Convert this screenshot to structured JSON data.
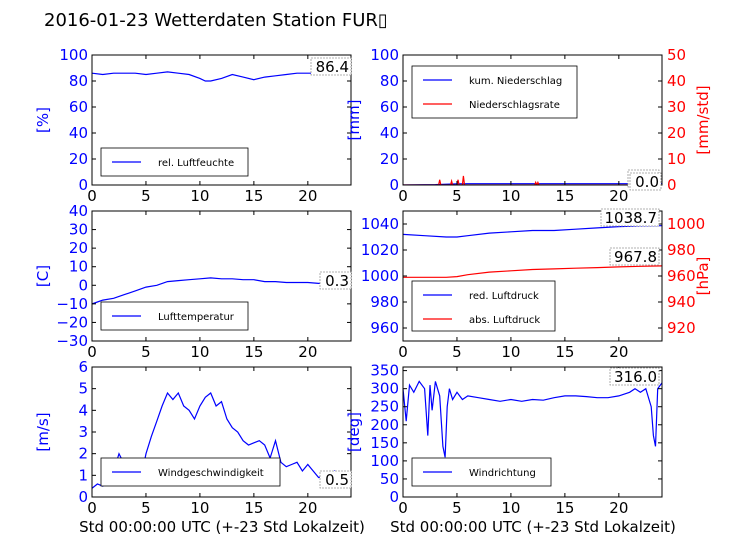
{
  "title": "2016-01-23 Wetterdaten Station FUR▯",
  "xlabel": "Std 00:00:00 UTC (+-23 Std Lokalzeit)",
  "colors": {
    "blue": "#0000ff",
    "red": "#ff0000"
  },
  "chart_data": [
    {
      "id": "humidity",
      "type": "line",
      "ylabel": "[%]",
      "ylim": [
        0,
        100
      ],
      "yticks": [
        "0",
        "20",
        "40",
        "60",
        "80",
        "100"
      ],
      "xlim": [
        0,
        24
      ],
      "xticks": [
        "0",
        "5",
        "10",
        "15",
        "20"
      ],
      "current_value": "86.4",
      "legend_position": "lower-left",
      "series": [
        {
          "name": "rel. Luftfeuchte",
          "color": "#0000ff",
          "x": [
            0,
            1,
            2,
            3,
            4,
            5,
            6,
            7,
            8,
            9,
            10,
            10.5,
            11,
            12,
            13,
            14,
            15,
            16,
            17,
            18,
            19,
            20,
            21,
            22,
            23,
            24
          ],
          "y": [
            86,
            85,
            86,
            86,
            86,
            85,
            86,
            87,
            86,
            85,
            82,
            80,
            80,
            82,
            85,
            83,
            81,
            83,
            84,
            85,
            86,
            86,
            86,
            86,
            86,
            86
          ]
        }
      ]
    },
    {
      "id": "precipitation",
      "type": "line",
      "ylabel": "[mm]",
      "ylim": [
        0,
        100
      ],
      "yticks": [
        "0",
        "20",
        "40",
        "60",
        "80",
        "100"
      ],
      "y2label": "[mm/std]",
      "y2lim": [
        0,
        50
      ],
      "y2ticks": [
        "0",
        "10",
        "20",
        "30",
        "40",
        "50"
      ],
      "xlim": [
        0,
        24
      ],
      "xticks": [
        "0",
        "5",
        "10",
        "15",
        "20"
      ],
      "current_value": "1.0",
      "current_value2": "0.0",
      "legend_position": "upper-left",
      "series": [
        {
          "name": "kum. Niederschlag",
          "color": "#0000ff",
          "axis": "left",
          "x": [
            0,
            3,
            4,
            5,
            6,
            12,
            13,
            24
          ],
          "y": [
            0,
            0.3,
            0.6,
            0.9,
            1.0,
            1.0,
            1.0,
            1.0
          ]
        },
        {
          "name": "Niederschlagsrate",
          "color": "#ff0000",
          "axis": "right",
          "x": [
            0,
            3.3,
            3.4,
            3.5,
            3.6,
            4.4,
            4.5,
            4.6,
            5.0,
            5.1,
            5.2,
            5.5,
            5.6,
            5.7,
            6,
            12.2,
            12.3,
            12.4,
            12.5,
            12.6,
            24
          ],
          "y": [
            0,
            0,
            2,
            0,
            0,
            0,
            1.5,
            0,
            0,
            2,
            0,
            0,
            3.5,
            0,
            0,
            0,
            1,
            0,
            1,
            0,
            0
          ]
        }
      ]
    },
    {
      "id": "temperature",
      "type": "line",
      "ylabel": "[C]",
      "ylim": [
        -30,
        40
      ],
      "yticks": [
        "−30",
        "−20",
        "−10",
        "0",
        "10",
        "20",
        "30",
        "40"
      ],
      "xlim": [
        0,
        24
      ],
      "xticks": [
        "0",
        "5",
        "10",
        "15",
        "20"
      ],
      "current_value": "0.3",
      "legend_position": "lower-left",
      "series": [
        {
          "name": "Lufttemperatur",
          "color": "#0000ff",
          "x": [
            0,
            0.5,
            1,
            2,
            3,
            4,
            5,
            6,
            7,
            8,
            9,
            10,
            11,
            12,
            13,
            14,
            15,
            16,
            17,
            18,
            19,
            20,
            21,
            22,
            23,
            24
          ],
          "y": [
            -10,
            -9,
            -8,
            -7,
            -5,
            -3,
            -1,
            0,
            2,
            2.5,
            3,
            3.5,
            4,
            3.5,
            3.5,
            3,
            3,
            2,
            2,
            1.5,
            1.5,
            1.5,
            1,
            1,
            0.5,
            0.3
          ]
        }
      ]
    },
    {
      "id": "pressure",
      "type": "line",
      "ylabel": "",
      "ylim": [
        950,
        1050
      ],
      "yticks": [
        "960",
        "980",
        "1000",
        "1020",
        "1040"
      ],
      "y2label": "[hPa]",
      "y2lim": [
        910,
        1010
      ],
      "y2ticks": [
        "920",
        "940",
        "960",
        "980",
        "1000"
      ],
      "xlim": [
        0,
        24
      ],
      "xticks": [
        "0",
        "5",
        "10",
        "15",
        "20"
      ],
      "current_value": "1038.7",
      "current_value2": "967.8",
      "legend_position": "lower-left",
      "series": [
        {
          "name": "red. Luftdruck",
          "color": "#0000ff",
          "axis": "left",
          "x": [
            0,
            2,
            4,
            5,
            6,
            8,
            10,
            12,
            14,
            16,
            18,
            20,
            22,
            24
          ],
          "y": [
            1032,
            1031,
            1030,
            1030,
            1031,
            1033,
            1034,
            1035,
            1035,
            1036,
            1037,
            1038,
            1038.5,
            1038.7
          ]
        },
        {
          "name": "abs. Luftdruck",
          "color": "#ff0000",
          "axis": "right",
          "x": [
            0,
            2,
            4,
            5,
            6,
            8,
            10,
            12,
            14,
            16,
            18,
            20,
            22,
            24
          ],
          "y": [
            959,
            959,
            959,
            959.5,
            961,
            963,
            964,
            965,
            965.5,
            966,
            966.5,
            967,
            967.5,
            967.8
          ]
        }
      ]
    },
    {
      "id": "windspeed",
      "type": "line",
      "ylabel": "[m/s]",
      "ylim": [
        0,
        6
      ],
      "yticks": [
        "0",
        "1",
        "2",
        "3",
        "4",
        "5",
        "6"
      ],
      "xlim": [
        0,
        24
      ],
      "xticks": [
        "0",
        "5",
        "10",
        "15",
        "20"
      ],
      "current_value": "0.5",
      "legend_position": "lower-left",
      "series": [
        {
          "name": "Windgeschwindigkeit",
          "color": "#0000ff",
          "x": [
            0,
            0.5,
            1,
            1.5,
            2,
            2.5,
            3,
            3.5,
            4,
            4.5,
            5,
            5.5,
            6,
            6.5,
            7,
            7.5,
            8,
            8.5,
            9,
            9.5,
            10,
            10.5,
            11,
            11.5,
            12,
            12.5,
            13,
            13.5,
            14,
            14.5,
            15,
            15.5,
            16,
            16.5,
            17,
            17.5,
            18,
            18.5,
            19,
            19.5,
            20,
            20.5,
            21,
            21.5,
            22,
            22.5,
            23,
            23.5,
            24
          ],
          "y": [
            0.4,
            0.6,
            0.5,
            0.8,
            1.2,
            2.0,
            1.5,
            0.9,
            1.2,
            0.8,
            2.0,
            2.8,
            3.5,
            4.2,
            4.8,
            4.5,
            4.8,
            4.2,
            4.0,
            3.6,
            4.2,
            4.6,
            4.8,
            4.2,
            4.4,
            3.6,
            3.2,
            3.0,
            2.6,
            2.4,
            2.5,
            2.6,
            2.4,
            1.8,
            2.6,
            1.6,
            1.4,
            1.5,
            1.6,
            1.2,
            1.5,
            1.2,
            0.9,
            1.0,
            0.9,
            1.2,
            0.8,
            0.6,
            0.5
          ]
        }
      ]
    },
    {
      "id": "winddirection",
      "type": "line",
      "ylabel": "[deg]",
      "ylim": [
        0,
        360
      ],
      "yticks": [
        "0",
        "50",
        "100",
        "150",
        "200",
        "250",
        "300",
        "350"
      ],
      "xlim": [
        0,
        24
      ],
      "xticks": [
        "0",
        "5",
        "10",
        "15",
        "20"
      ],
      "current_value": "316.0",
      "legend_position": "lower-left",
      "series": [
        {
          "name": "Windrichtung",
          "color": "#0000ff",
          "x": [
            0,
            0.3,
            0.6,
            1,
            1.5,
            2,
            2.3,
            2.5,
            2.7,
            3,
            3.4,
            3.7,
            3.9,
            4.1,
            4.3,
            4.6,
            5,
            5.5,
            6,
            7,
            8,
            9,
            10,
            11,
            12,
            13,
            14,
            15,
            16,
            17,
            18,
            19,
            20,
            21,
            21.5,
            22,
            22.5,
            23,
            23.2,
            23.4,
            23.6,
            24
          ],
          "y": [
            300,
            210,
            310,
            290,
            320,
            300,
            170,
            310,
            240,
            320,
            280,
            140,
            110,
            250,
            300,
            270,
            290,
            270,
            280,
            275,
            270,
            265,
            270,
            265,
            270,
            268,
            275,
            280,
            280,
            278,
            275,
            275,
            280,
            290,
            300,
            290,
            300,
            250,
            170,
            140,
            300,
            316
          ]
        }
      ]
    }
  ]
}
